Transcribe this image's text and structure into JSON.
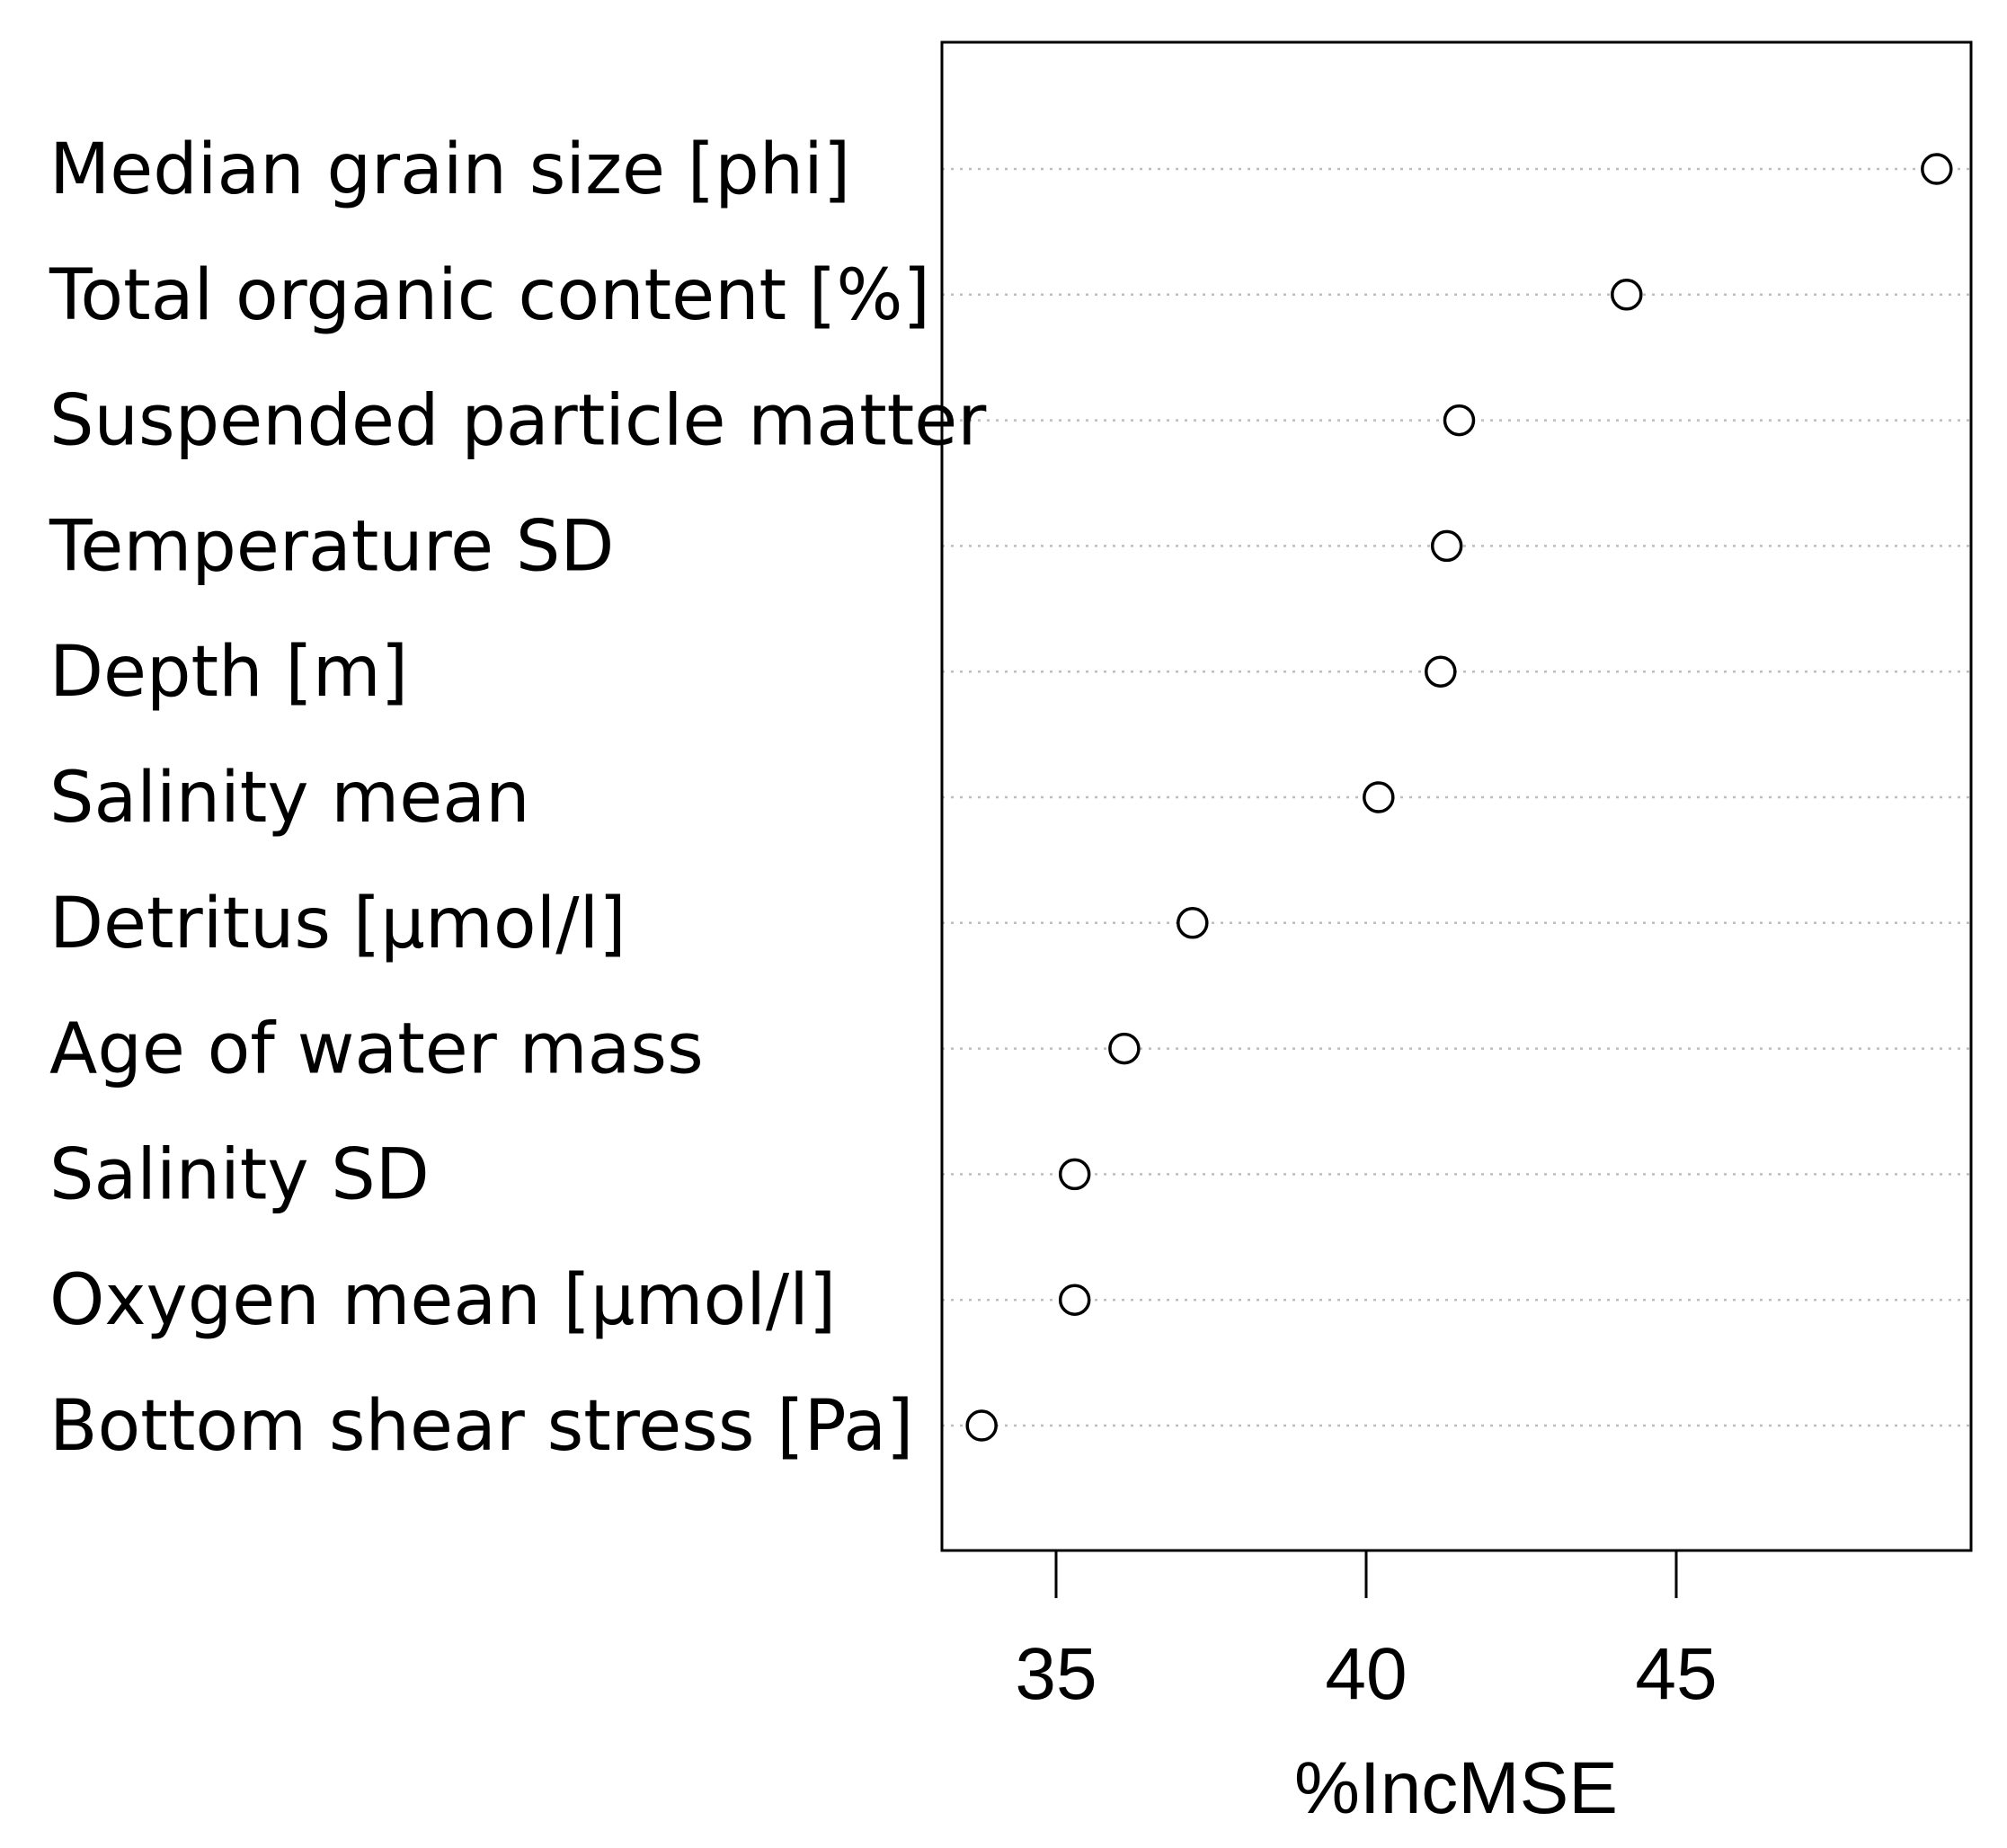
{
  "chart_data": {
    "type": "scatter",
    "subtype": "dotchart",
    "title": "",
    "xlabel": "%IncMSE",
    "ylabel": "",
    "xlim": [
      33.2,
      49.8
    ],
    "xticks": [
      35,
      40,
      45
    ],
    "xtick_labels": [
      "35",
      "40",
      "45"
    ],
    "grid": "dotted horizontal guide line per category",
    "marker": "open-circle",
    "categories": [
      "Median grain size [phi]",
      "Total organic content [%]",
      "Suspended particle matter",
      "Temperature SD",
      "Depth [m]",
      "Salinity mean",
      "Detritus [µmol/l]",
      "Age of water mass",
      "Salinity SD",
      "Oxygen mean [µmol/l]",
      "Bottom shear stress [Pa]"
    ],
    "values": [
      49.2,
      44.2,
      41.5,
      41.3,
      41.2,
      40.2,
      37.2,
      36.1,
      35.3,
      35.3,
      33.8
    ]
  },
  "colors": {
    "axis": "#000000",
    "grid": "#bdbdbd",
    "marker_stroke": "#000000",
    "marker_fill": "#ffffff",
    "text": "#000000"
  }
}
